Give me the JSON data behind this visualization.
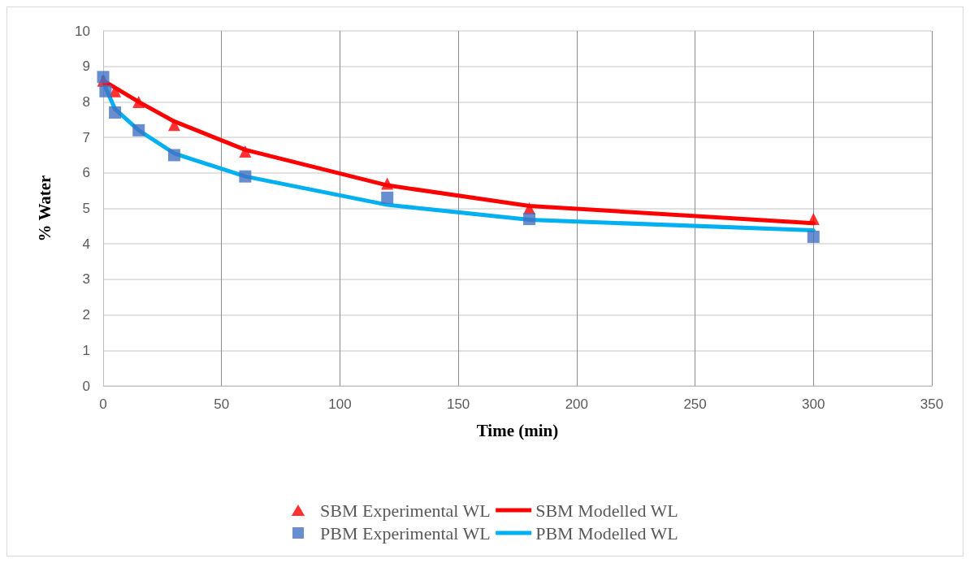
{
  "chart_data": {
    "type": "scatter",
    "xlabel": "Time (min)",
    "ylabel": "% Water",
    "xlim": [
      0,
      350
    ],
    "xticks": [
      0,
      50,
      100,
      150,
      200,
      250,
      300,
      350
    ],
    "ylim": [
      0,
      10
    ],
    "yticks": [
      0,
      1,
      2,
      3,
      4,
      5,
      6,
      7,
      8,
      9,
      10
    ],
    "grid": true,
    "legend": "bottom",
    "series": [
      {
        "name": "SBM Experimental WL",
        "marker": "triangle",
        "color": "#ff0000",
        "x": [
          0,
          5,
          15,
          30,
          60,
          120,
          180,
          300
        ],
        "values": [
          8.6,
          8.3,
          8.0,
          7.35,
          6.6,
          5.7,
          5.0,
          4.7
        ]
      },
      {
        "name": "SBM Modelled WL",
        "type": "line",
        "marker": "none",
        "color": "#ff0000",
        "x": [
          0,
          5,
          15,
          30,
          60,
          120,
          180,
          300
        ],
        "values": [
          8.6,
          8.4,
          8.0,
          7.45,
          6.65,
          5.65,
          5.07,
          4.58
        ]
      },
      {
        "name": "PBM Experimental WL",
        "marker": "square",
        "color": "#4472c4",
        "x": [
          0,
          1,
          5,
          15,
          30,
          60,
          120,
          180,
          300
        ],
        "values": [
          8.7,
          8.3,
          7.7,
          7.2,
          6.5,
          5.9,
          5.3,
          4.7,
          4.2
        ]
      },
      {
        "name": "PBM Modelled WL",
        "type": "line",
        "marker": "none",
        "color": "#00b0f0",
        "x": [
          0,
          1,
          5,
          15,
          30,
          60,
          120,
          180,
          300
        ],
        "values": [
          8.7,
          8.4,
          7.8,
          7.2,
          6.55,
          5.9,
          5.1,
          4.68,
          4.38
        ]
      }
    ]
  }
}
